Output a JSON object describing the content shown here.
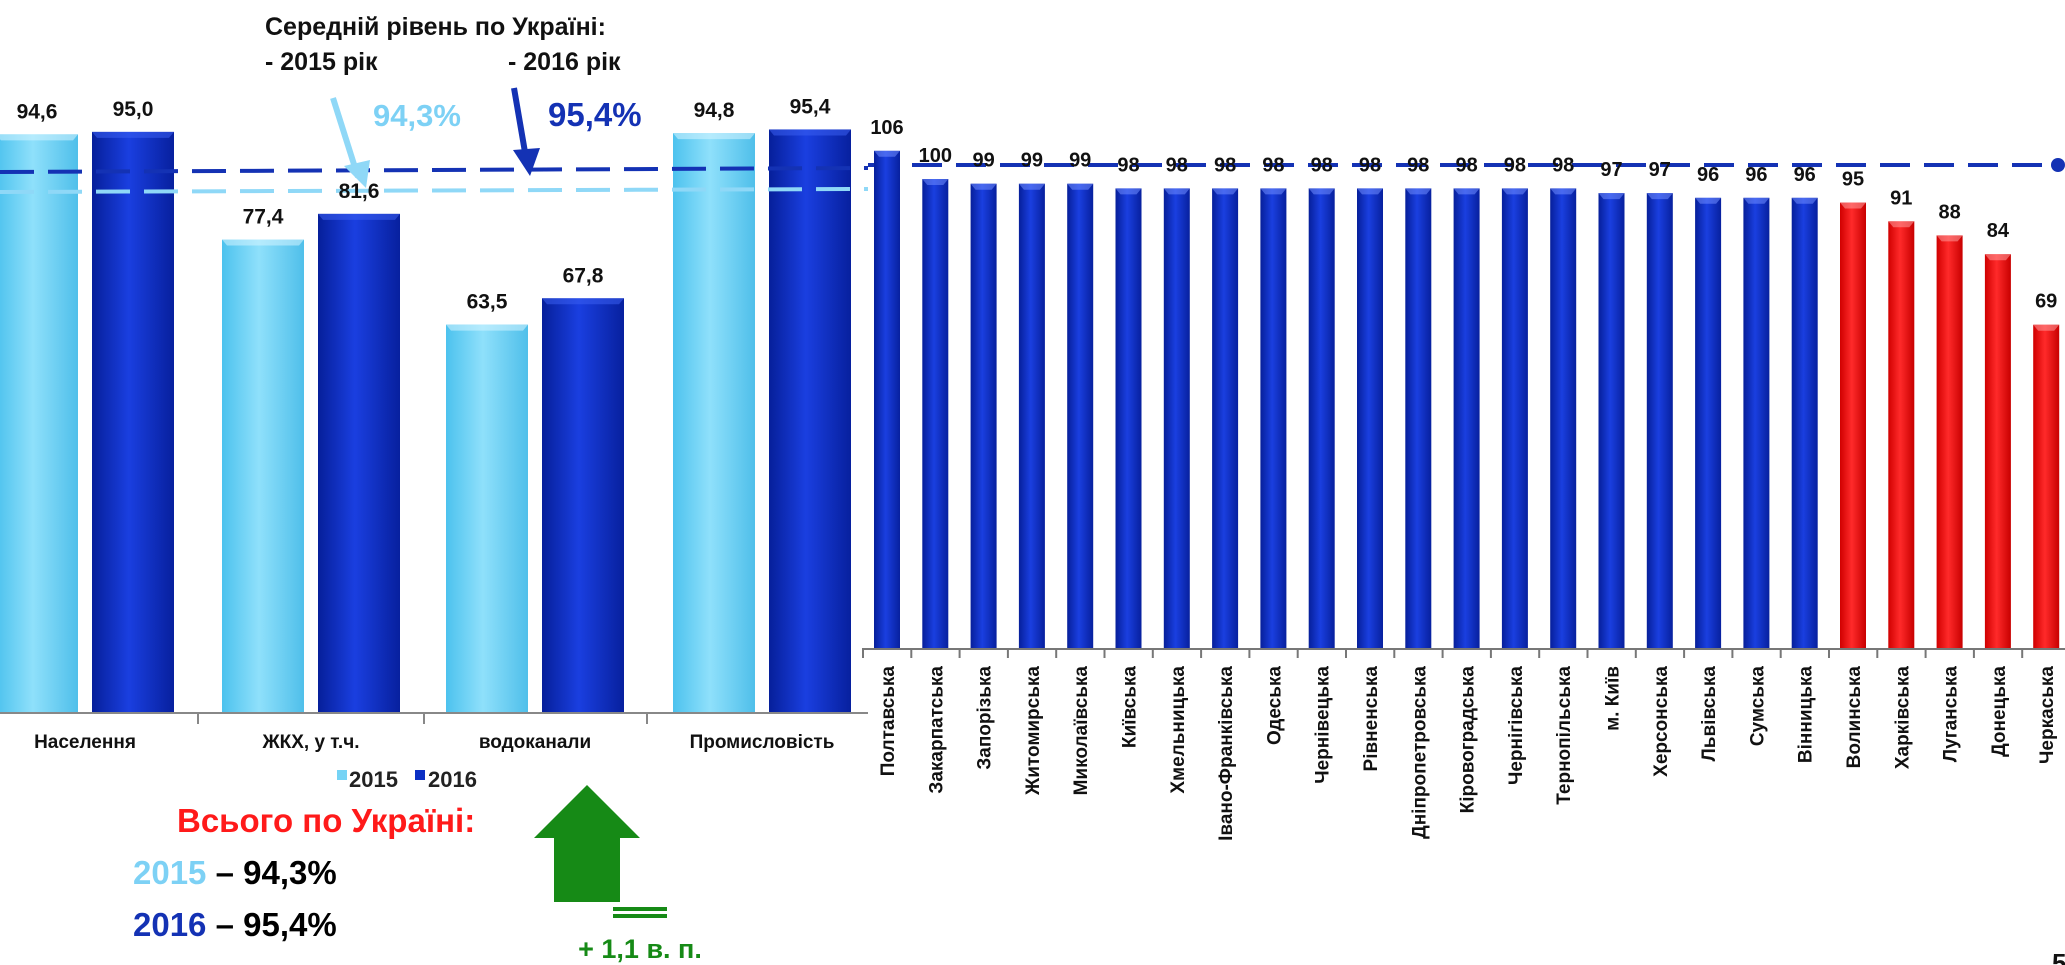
{
  "chart_data": [
    {
      "type": "bar",
      "categories": [
        "Населення",
        "ЖКХ, у т.ч.",
        "водоканали",
        "Промисловість"
      ],
      "series": [
        {
          "name": "2015",
          "values": [
            94.6,
            77.4,
            63.5,
            94.8
          ],
          "labels": [
            "94,6",
            "77,4",
            "63,5",
            "94,8"
          ]
        },
        {
          "name": "2016",
          "values": [
            95.0,
            81.6,
            67.8,
            95.4
          ],
          "labels": [
            "95,0",
            "81,6",
            "67,8",
            "95,4"
          ]
        }
      ],
      "avg_title": "Середній рівень по Україні:",
      "avg_2015_label": "- 2015 рік",
      "avg_2016_label": "- 2016 рік",
      "avg_2015_value": "94,3%",
      "avg_2016_value": "95,4%",
      "avg_2015": 94.3,
      "avg_2016": 95.4,
      "legend_2015": "2015",
      "legend_2016": "2016",
      "legend_position": "bottom"
    },
    {
      "type": "bar",
      "categories": [
        "Полтавська",
        "Закарпатська",
        "Запорізька",
        "Житомирська",
        "Миколаївська",
        "Київська",
        "Хмельницька",
        "Івано-Франківська",
        "Одеська",
        "Чернівецька",
        "Рівненська",
        "Дніпропетровська",
        "Кіровоградська",
        "Чернігівська",
        "Тернопільська",
        "м. Київ",
        "Херсонська",
        "Львівська",
        "Сумська",
        "Вінницька",
        "Волинська",
        "Харківська",
        "Луганська",
        "Донецька",
        "Черкаська"
      ],
      "values": [
        106,
        100,
        99,
        99,
        99,
        98,
        98,
        98,
        98,
        98,
        98,
        98,
        98,
        98,
        98,
        97,
        97,
        96,
        96,
        96,
        95,
        91,
        88,
        84,
        69
      ],
      "red_from_index": 20,
      "reference_value": 95.4
    }
  ],
  "summary": {
    "title": "Всього по Україні:",
    "y2015": "2015",
    "v2015": " – 94,3%",
    "y2016": "2016",
    "v2016": " – 95,4%"
  },
  "growth": {
    "label": "+ 1,1 в. п."
  },
  "page_number": "5",
  "colors": {
    "light": "#75d3f5",
    "dark": "#0b2fc4",
    "red": "#ff0d0d",
    "accent_red": "#ff1a1a",
    "green": "#168a16",
    "avg_light": "#8fd8f7",
    "avg_dark": "#1432b4"
  }
}
